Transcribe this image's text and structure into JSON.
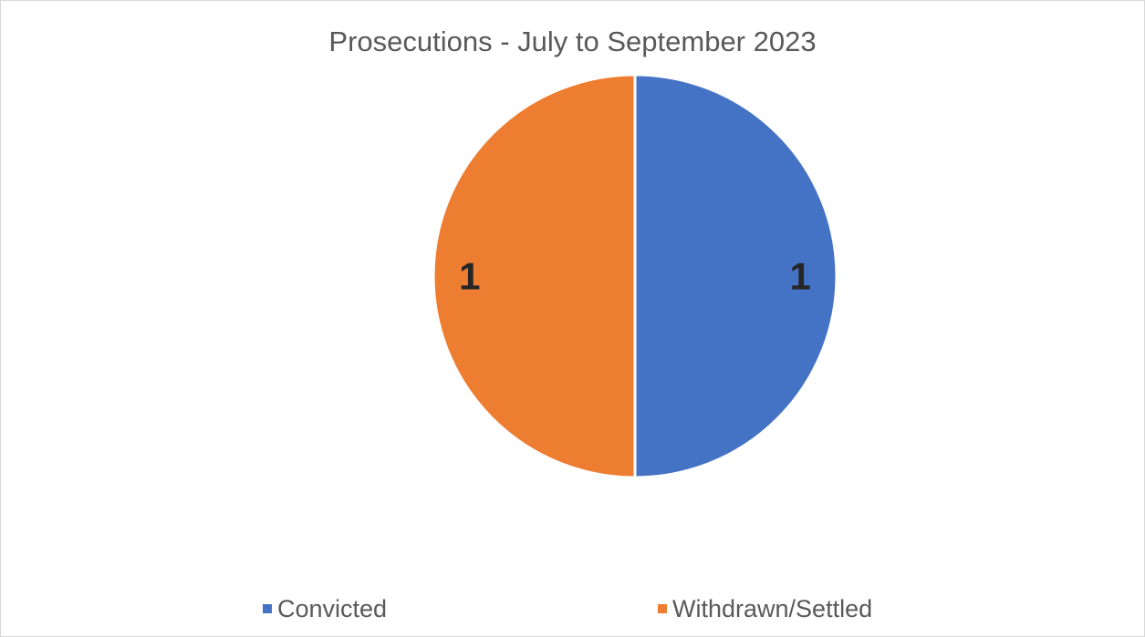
{
  "chart_data": {
    "type": "pie",
    "title": "Prosecutions - July to September 2023",
    "categories": [
      "Convicted",
      "Withdrawn/Settled"
    ],
    "values": [
      1,
      1
    ],
    "data_labels": [
      "1",
      "1"
    ],
    "colors": [
      "#4472C4",
      "#ED7D31"
    ],
    "legend_position": "bottom"
  }
}
